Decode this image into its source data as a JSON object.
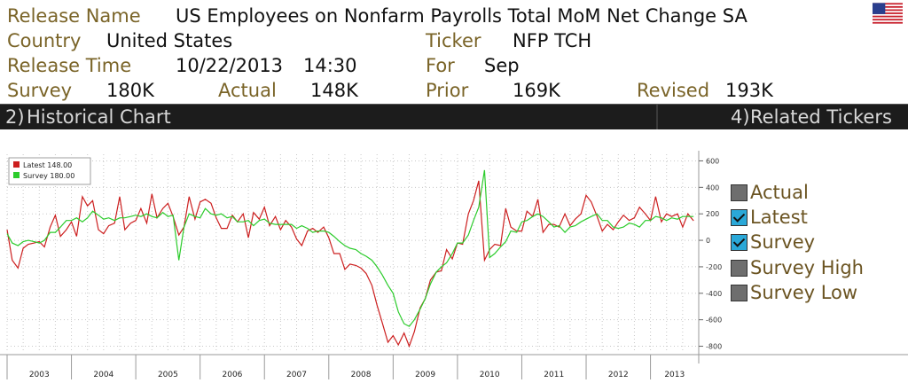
{
  "header": {
    "release_name_label": "Release Name",
    "release_name": "US Employees on Nonfarm Payrolls Total MoM Net Change SA",
    "country_label": "Country",
    "country": "United States",
    "ticker_label": "Ticker",
    "ticker": "NFP TCH",
    "release_time_label": "Release Time",
    "release_date": "10/22/2013",
    "release_clock": "14:30",
    "for_label": "For",
    "for_value": "Sep",
    "survey_label": "Survey",
    "survey_value": "180K",
    "actual_label": "Actual",
    "actual_value": "148K",
    "prior_label": "Prior",
    "prior_value": "169K",
    "revised_label": "Revised",
    "revised_value": "193K",
    "flag_icon": "us-flag-icon"
  },
  "tabs": {
    "historical_num": "2)",
    "historical_label": "Historical Chart",
    "related_num": "4)",
    "related_label": "Related Tickers"
  },
  "options": [
    {
      "label": "Actual",
      "checked": false
    },
    {
      "label": "Latest",
      "checked": true
    },
    {
      "label": "Survey",
      "checked": true
    },
    {
      "label": "Survey High",
      "checked": false
    },
    {
      "label": "Survey Low",
      "checked": false
    }
  ],
  "chart_data": {
    "type": "line",
    "x_tick_labels": [
      "2003",
      "2004",
      "2005",
      "2006",
      "2007",
      "2008",
      "2009",
      "2010",
      "2011",
      "2012",
      "2013"
    ],
    "y_ticks": [
      600,
      400,
      200,
      0,
      -200,
      -400,
      -600,
      -800
    ],
    "ylim": [
      -850,
      650
    ],
    "xlim": [
      2003.0,
      2013.75
    ],
    "grid": true,
    "legend_position": "top-left",
    "series": [
      {
        "name": "Latest",
        "legend_value": "148.00",
        "color": "#cc1f1f",
        "x": [
          2003.0,
          2003.08,
          2003.17,
          2003.25,
          2003.33,
          2003.42,
          2003.5,
          2003.58,
          2003.67,
          2003.75,
          2003.83,
          2003.92,
          2004.0,
          2004.08,
          2004.17,
          2004.25,
          2004.33,
          2004.42,
          2004.5,
          2004.58,
          2004.67,
          2004.75,
          2004.83,
          2004.92,
          2005.0,
          2005.08,
          2005.17,
          2005.25,
          2005.33,
          2005.42,
          2005.5,
          2005.58,
          2005.67,
          2005.75,
          2005.83,
          2005.92,
          2006.0,
          2006.08,
          2006.17,
          2006.25,
          2006.33,
          2006.42,
          2006.5,
          2006.58,
          2006.67,
          2006.75,
          2006.83,
          2006.92,
          2007.0,
          2007.08,
          2007.17,
          2007.25,
          2007.33,
          2007.42,
          2007.5,
          2007.58,
          2007.67,
          2007.75,
          2007.83,
          2007.92,
          2008.0,
          2008.08,
          2008.17,
          2008.25,
          2008.33,
          2008.42,
          2008.5,
          2008.58,
          2008.67,
          2008.75,
          2008.83,
          2008.92,
          2009.0,
          2009.08,
          2009.17,
          2009.25,
          2009.33,
          2009.42,
          2009.5,
          2009.58,
          2009.67,
          2009.75,
          2009.83,
          2009.92,
          2010.0,
          2010.08,
          2010.17,
          2010.25,
          2010.33,
          2010.42,
          2010.5,
          2010.58,
          2010.67,
          2010.75,
          2010.83,
          2010.92,
          2011.0,
          2011.08,
          2011.17,
          2011.25,
          2011.33,
          2011.42,
          2011.5,
          2011.58,
          2011.67,
          2011.75,
          2011.83,
          2011.92,
          2012.0,
          2012.08,
          2012.17,
          2012.25,
          2012.33,
          2012.42,
          2012.5,
          2012.58,
          2012.67,
          2012.75,
          2012.83,
          2012.92,
          2013.0,
          2013.08,
          2013.17,
          2013.25,
          2013.33,
          2013.42,
          2013.5,
          2013.58,
          2013.67
        ],
        "values": [
          80,
          -150,
          -210,
          -60,
          -30,
          -20,
          -10,
          -50,
          100,
          190,
          30,
          80,
          140,
          30,
          330,
          260,
          300,
          80,
          50,
          110,
          130,
          330,
          80,
          130,
          150,
          240,
          130,
          350,
          170,
          240,
          280,
          180,
          40,
          100,
          330,
          160,
          290,
          310,
          280,
          170,
          90,
          90,
          190,
          140,
          200,
          20,
          210,
          160,
          250,
          110,
          180,
          80,
          150,
          100,
          10,
          -40,
          70,
          90,
          60,
          100,
          20,
          -100,
          -100,
          -220,
          -180,
          -190,
          -210,
          -250,
          -340,
          -490,
          -620,
          -770,
          -720,
          -790,
          -700,
          -800,
          -690,
          -510,
          -440,
          -300,
          -240,
          -230,
          -70,
          -140,
          -20,
          -30,
          200,
          300,
          450,
          -150,
          -70,
          -30,
          -40,
          240,
          100,
          70,
          70,
          220,
          180,
          310,
          60,
          120,
          120,
          100,
          200,
          110,
          160,
          200,
          340,
          290,
          180,
          70,
          120,
          80,
          140,
          190,
          150,
          170,
          250,
          200,
          150,
          330,
          140,
          200,
          180,
          200,
          100,
          200,
          148
        ]
      },
      {
        "name": "Survey",
        "legend_value": "180.00",
        "color": "#2ccc2c",
        "x": [
          2003.0,
          2003.08,
          2003.17,
          2003.25,
          2003.33,
          2003.42,
          2003.5,
          2003.58,
          2003.67,
          2003.75,
          2003.83,
          2003.92,
          2004.0,
          2004.08,
          2004.17,
          2004.25,
          2004.33,
          2004.42,
          2004.5,
          2004.58,
          2004.67,
          2004.75,
          2004.83,
          2004.92,
          2005.0,
          2005.08,
          2005.17,
          2005.25,
          2005.33,
          2005.42,
          2005.5,
          2005.58,
          2005.67,
          2005.75,
          2005.83,
          2005.92,
          2006.0,
          2006.08,
          2006.17,
          2006.25,
          2006.33,
          2006.42,
          2006.5,
          2006.58,
          2006.67,
          2006.75,
          2006.83,
          2006.92,
          2007.0,
          2007.08,
          2007.17,
          2007.25,
          2007.33,
          2007.42,
          2007.5,
          2007.58,
          2007.67,
          2007.75,
          2007.83,
          2007.92,
          2008.0,
          2008.08,
          2008.17,
          2008.25,
          2008.33,
          2008.42,
          2008.5,
          2008.58,
          2008.67,
          2008.75,
          2008.83,
          2008.92,
          2009.0,
          2009.08,
          2009.17,
          2009.25,
          2009.33,
          2009.42,
          2009.5,
          2009.58,
          2009.67,
          2009.75,
          2009.83,
          2009.92,
          2010.0,
          2010.08,
          2010.17,
          2010.25,
          2010.33,
          2010.42,
          2010.5,
          2010.58,
          2010.67,
          2010.75,
          2010.83,
          2010.92,
          2011.0,
          2011.08,
          2011.17,
          2011.25,
          2011.33,
          2011.42,
          2011.5,
          2011.58,
          2011.67,
          2011.75,
          2011.83,
          2011.92,
          2012.0,
          2012.08,
          2012.17,
          2012.25,
          2012.33,
          2012.42,
          2012.5,
          2012.58,
          2012.67,
          2012.75,
          2012.83,
          2012.92,
          2013.0,
          2013.08,
          2013.17,
          2013.25,
          2013.33,
          2013.42,
          2013.5,
          2013.58,
          2013.67
        ],
        "values": [
          50,
          -20,
          -40,
          -10,
          0,
          -10,
          -20,
          0,
          60,
          60,
          100,
          150,
          150,
          170,
          140,
          170,
          220,
          190,
          160,
          170,
          150,
          170,
          170,
          180,
          190,
          180,
          200,
          180,
          170,
          210,
          180,
          190,
          -150,
          100,
          200,
          180,
          170,
          240,
          200,
          190,
          200,
          170,
          180,
          140,
          140,
          150,
          110,
          150,
          160,
          130,
          120,
          120,
          120,
          120,
          90,
          110,
          90,
          60,
          70,
          70,
          60,
          30,
          -10,
          -40,
          -60,
          -70,
          -100,
          -120,
          -150,
          -200,
          -260,
          -340,
          -400,
          -540,
          -630,
          -650,
          -600,
          -520,
          -440,
          -330,
          -240,
          -200,
          -170,
          -100,
          -20,
          -20,
          40,
          150,
          250,
          530,
          -130,
          -100,
          -50,
          -10,
          70,
          60,
          140,
          150,
          180,
          200,
          180,
          140,
          100,
          110,
          60,
          100,
          110,
          140,
          160,
          180,
          200,
          150,
          150,
          100,
          90,
          100,
          130,
          120,
          100,
          150,
          150,
          180,
          170,
          150,
          170,
          160,
          180,
          180,
          180
        ]
      }
    ]
  }
}
